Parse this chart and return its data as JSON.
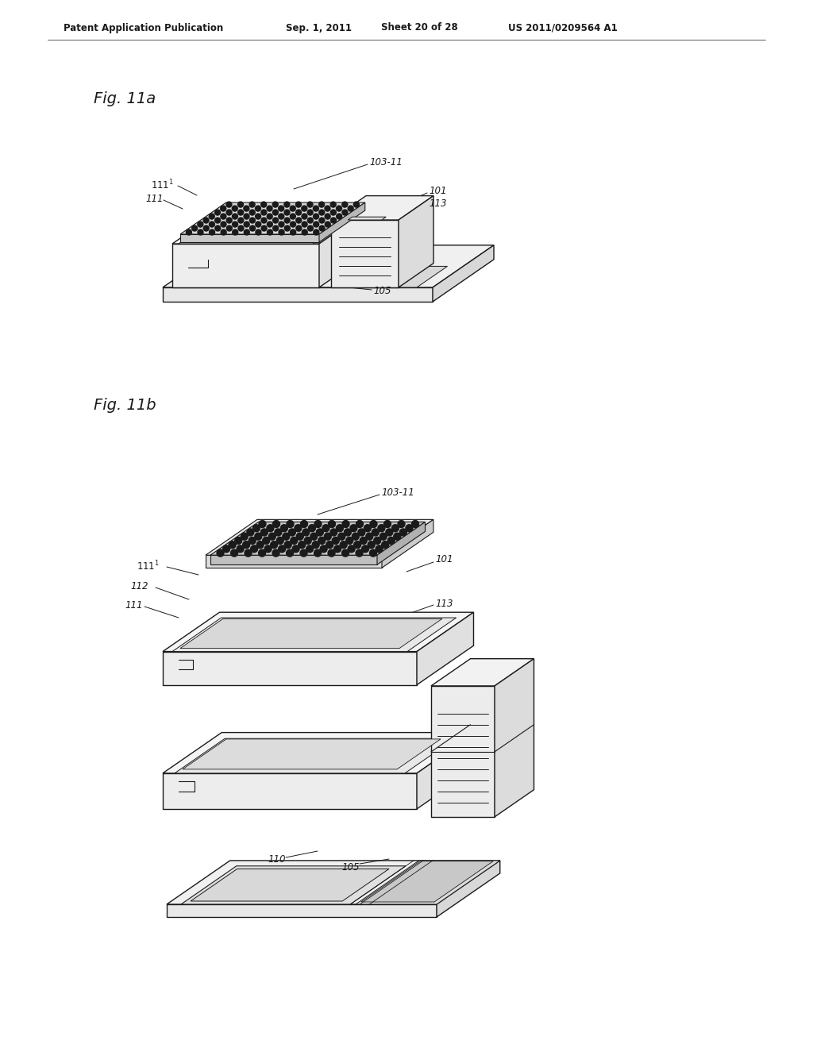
{
  "background_color": "#ffffff",
  "line_color": "#1a1a1a",
  "header_text": "Patent Application Publication",
  "header_date": "Sep. 1, 2011",
  "header_sheet": "Sheet 20 of 28",
  "header_patent": "US 2011/0209564 A1",
  "fig_a_label": "Fig. 11a",
  "fig_b_label": "Fig. 11b",
  "face_top": "#f0f0f0",
  "face_front": "#e8e8e8",
  "face_right": "#d8d8d8",
  "face_dark": "#c8c8c8",
  "plate_top": "#c0c0c0",
  "plate_front": "#b8b8b8",
  "dot_color": "#1a1a1a",
  "base_face": "#ebebeb",
  "base_top": "#f5f5f5"
}
